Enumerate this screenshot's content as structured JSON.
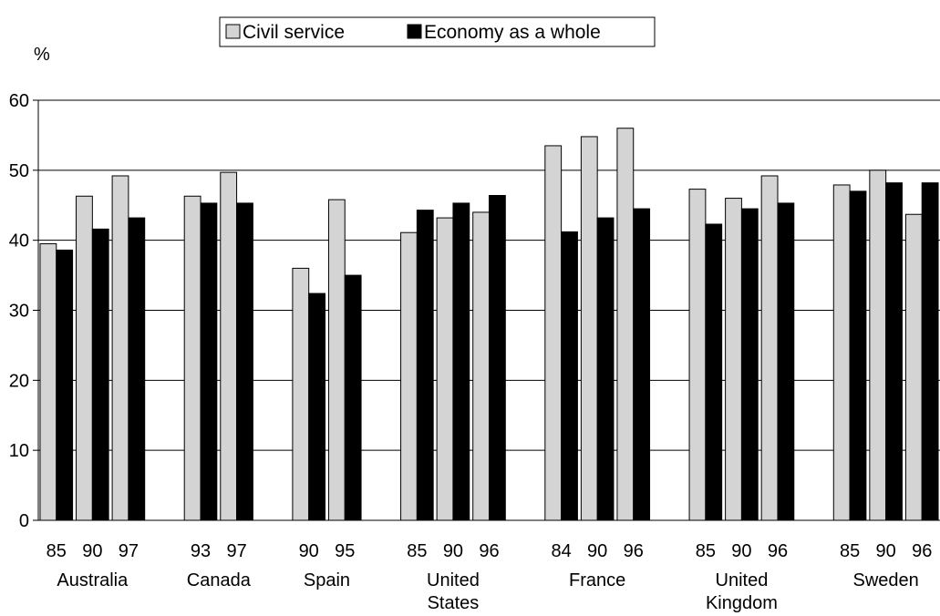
{
  "chart_data": {
    "type": "bar",
    "title": "",
    "xlabel": "",
    "ylabel": "%",
    "ylim": [
      0,
      60
    ],
    "yticks": [
      0,
      10,
      20,
      30,
      40,
      50,
      60
    ],
    "grid": true,
    "legend_position": "top-center",
    "colors": {
      "Civil service": "#d4d4d4",
      "Economy as a whole": "#000000"
    },
    "groups": [
      {
        "name": [
          "Australia"
        ],
        "years": [
          "85",
          "90",
          "97"
        ],
        "civil": [
          39.5,
          46.3,
          49.2
        ],
        "economy": [
          38.6,
          41.6,
          43.2
        ]
      },
      {
        "name": [
          "Canada"
        ],
        "years": [
          "93",
          "97"
        ],
        "civil": [
          46.3,
          49.7
        ],
        "economy": [
          45.3,
          45.3
        ]
      },
      {
        "name": [
          "Spain"
        ],
        "years": [
          "90",
          "95"
        ],
        "civil": [
          36.0,
          45.8
        ],
        "economy": [
          32.4,
          35.0
        ]
      },
      {
        "name": [
          "United",
          "States"
        ],
        "years": [
          "85",
          "90",
          "96"
        ],
        "civil": [
          41.1,
          43.2,
          44.0
        ],
        "economy": [
          44.3,
          45.3,
          46.4
        ]
      },
      {
        "name": [
          "France"
        ],
        "years": [
          "84",
          "90",
          "96"
        ],
        "civil": [
          53.5,
          54.8,
          56.0
        ],
        "economy": [
          41.2,
          43.2,
          44.5
        ]
      },
      {
        "name": [
          "United",
          "Kingdom"
        ],
        "years": [
          "85",
          "90",
          "96"
        ],
        "civil": [
          47.3,
          46.0,
          49.2
        ],
        "economy": [
          42.3,
          44.5,
          45.3
        ]
      },
      {
        "name": [
          "Sweden"
        ],
        "years": [
          "85",
          "90",
          "96"
        ],
        "civil": [
          47.9,
          50.0,
          43.7
        ],
        "economy": [
          47.0,
          48.2,
          48.2
        ]
      }
    ],
    "series": [
      {
        "name": "Civil service"
      },
      {
        "name": "Economy as a whole"
      }
    ]
  }
}
